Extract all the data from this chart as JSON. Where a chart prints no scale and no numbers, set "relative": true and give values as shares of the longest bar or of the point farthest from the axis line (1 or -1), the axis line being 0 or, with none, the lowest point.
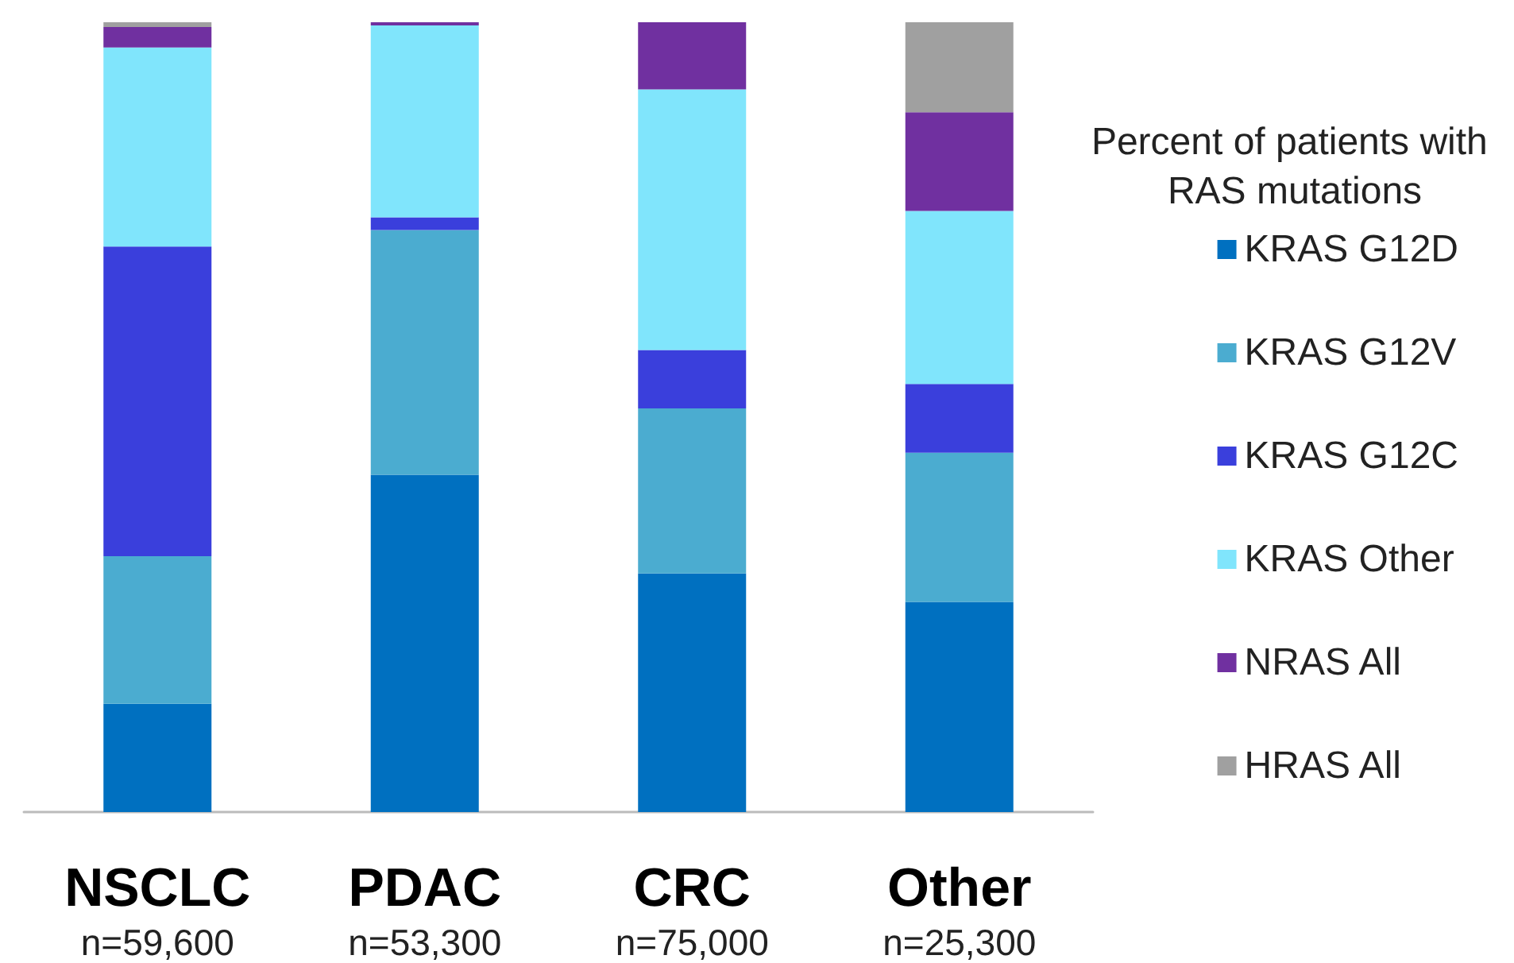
{
  "chart_data": {
    "type": "bar",
    "stacked": true,
    "relative": true,
    "legend": "right",
    "legend_title": "Percent of patients with RAS mutations",
    "categories": [
      "NSCLC\nn=59,600",
      "PDAC\nn=53,300",
      "CRC\nn=75,000",
      "Other\nn=25,300"
    ],
    "series": [
      {
        "name": "KRAS G12D",
        "color": "#0070c0",
        "values": [
          0.137,
          0.427,
          0.302,
          0.266
        ]
      },
      {
        "name": "KRAS G12V",
        "color": "#4bacd0",
        "values": [
          0.187,
          0.31,
          0.209,
          0.189
        ]
      },
      {
        "name": "KRAS G12C",
        "color": "#3a3fdc",
        "values": [
          0.392,
          0.016,
          0.074,
          0.087
        ]
      },
      {
        "name": "KRAS Other",
        "color": "#80e5fc",
        "values": [
          0.252,
          0.243,
          0.33,
          0.219
        ]
      },
      {
        "name": "NRAS All",
        "color": "#7030a0",
        "values": [
          0.026,
          0.004,
          0.085,
          0.125
        ]
      },
      {
        "name": "HRAS All",
        "color": "#a0a0a0",
        "values": [
          0.006,
          0,
          0,
          0.114
        ]
      }
    ]
  }
}
